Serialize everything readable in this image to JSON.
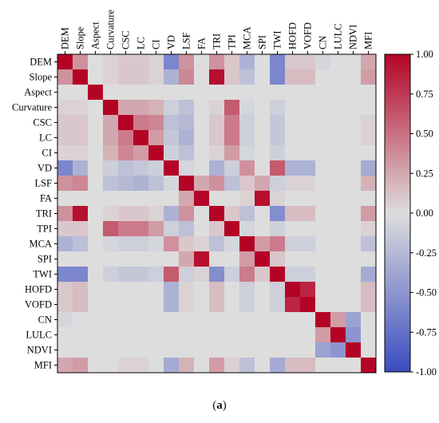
{
  "chart_data": {
    "type": "heatmap",
    "title": "",
    "variables": [
      "DEM",
      "Slope",
      "Aspect",
      "Curvature",
      "CSC",
      "LC",
      "CI",
      "VD",
      "LSF",
      "FA",
      "TRI",
      "TPI",
      "MCA",
      "SPI",
      "TWI",
      "HOFD",
      "VOFD",
      "CN",
      "LULC",
      "NDVI",
      "MFI"
    ],
    "colorbar": {
      "min": -1.0,
      "max": 1.0,
      "ticks": [
        "1.00",
        "0.75",
        "0.50",
        "0.25",
        "0.00",
        "-0.25",
        "-0.50",
        "-0.75",
        "-1.00"
      ],
      "colormap": "coolwarm",
      "colors": {
        "low": "#3b4cc0",
        "mid": "#dddddd",
        "high": "#b40426"
      }
    },
    "matrix": [
      [
        1,
        0.35,
        0,
        0.05,
        0.1,
        0.1,
        0.05,
        -0.6,
        0.35,
        0,
        0.35,
        0.1,
        -0.3,
        0,
        -0.6,
        0.1,
        0.1,
        -0.05,
        0,
        0,
        0.25
      ],
      [
        0.35,
        1,
        0,
        0.05,
        0.1,
        0.1,
        0.05,
        -0.3,
        0.4,
        0,
        0.95,
        0.1,
        -0.2,
        0,
        -0.6,
        0.15,
        0.15,
        0,
        0,
        0,
        0.3
      ],
      [
        0,
        0,
        1,
        0,
        0,
        0,
        0,
        0,
        0,
        0,
        0,
        0,
        0,
        0,
        0,
        0,
        0,
        0,
        0,
        0,
        0
      ],
      [
        0.05,
        0.05,
        0,
        1,
        0.25,
        0.25,
        0.2,
        -0.1,
        -0.2,
        0,
        0.05,
        0.6,
        -0.05,
        0,
        -0.1,
        0,
        0,
        0,
        0,
        0,
        0
      ],
      [
        0.1,
        0.1,
        0,
        0.25,
        1,
        0.45,
        0.4,
        -0.2,
        -0.25,
        0,
        0.1,
        0.45,
        -0.1,
        0,
        -0.15,
        0,
        0,
        0,
        0,
        0,
        0.05
      ],
      [
        0.1,
        0.1,
        0,
        0.25,
        0.45,
        1,
        0.3,
        -0.15,
        -0.3,
        0,
        0.1,
        0.45,
        -0.1,
        0,
        -0.15,
        0,
        0,
        0,
        0,
        0,
        0.05
      ],
      [
        0.05,
        0.05,
        0,
        0.2,
        0.4,
        0.3,
        1,
        -0.1,
        -0.2,
        0,
        0.05,
        0.3,
        -0.05,
        0,
        -0.1,
        0,
        0,
        0,
        0,
        0,
        0
      ],
      [
        -0.6,
        -0.3,
        0,
        -0.1,
        -0.2,
        -0.15,
        -0.1,
        1,
        -0.05,
        0,
        -0.3,
        -0.1,
        0.35,
        0,
        0.6,
        -0.3,
        -0.3,
        0,
        0,
        0,
        -0.35
      ],
      [
        0.35,
        0.4,
        0,
        -0.2,
        -0.25,
        -0.3,
        -0.2,
        -0.05,
        1,
        0.25,
        0.35,
        -0.2,
        0.1,
        0.25,
        -0.1,
        0.05,
        0.05,
        0,
        0,
        0,
        0.2
      ],
      [
        0,
        0,
        0,
        0,
        0,
        0,
        0,
        0,
        0.25,
        1,
        0,
        0,
        0.05,
        0.95,
        0.05,
        0,
        0,
        0,
        0,
        0,
        0
      ],
      [
        0.35,
        0.95,
        0,
        0.05,
        0.1,
        0.1,
        0.05,
        -0.3,
        0.35,
        0,
        1,
        0.1,
        -0.2,
        0,
        -0.55,
        0.15,
        0.15,
        0,
        0,
        0,
        0.3
      ],
      [
        0.1,
        0.1,
        0,
        0.6,
        0.45,
        0.45,
        0.3,
        -0.1,
        -0.2,
        0,
        0.1,
        1,
        -0.05,
        0,
        -0.1,
        0,
        0,
        0,
        0,
        0,
        0.05
      ],
      [
        -0.3,
        -0.2,
        0,
        -0.05,
        -0.1,
        -0.1,
        -0.05,
        0.35,
        0.1,
        0.05,
        -0.2,
        -0.05,
        1,
        0.3,
        0.45,
        -0.1,
        -0.1,
        0,
        0,
        0,
        -0.2
      ],
      [
        0,
        0,
        0,
        0,
        0,
        0,
        0,
        0,
        0.25,
        0.95,
        0,
        0,
        0.3,
        1,
        0.1,
        0,
        0,
        0,
        0,
        0,
        0
      ],
      [
        -0.6,
        -0.6,
        0,
        -0.1,
        -0.15,
        -0.15,
        -0.1,
        0.6,
        -0.1,
        0.05,
        -0.55,
        -0.1,
        0.45,
        0.1,
        1,
        -0.1,
        -0.1,
        0,
        0,
        0,
        -0.35
      ],
      [
        0.1,
        0.15,
        0,
        0,
        0,
        0,
        0,
        -0.3,
        0.05,
        0,
        0.15,
        0,
        -0.1,
        0,
        -0.1,
        1,
        0.85,
        0,
        0,
        0,
        0.15
      ],
      [
        0.1,
        0.15,
        0,
        0,
        0,
        0,
        0,
        -0.3,
        0.05,
        0,
        0.15,
        0,
        -0.1,
        0,
        -0.1,
        0.85,
        1,
        0,
        0,
        0,
        0.15
      ],
      [
        -0.05,
        0,
        0,
        0,
        0,
        0,
        0,
        0,
        0,
        0,
        0,
        0,
        0,
        0,
        0,
        0,
        0,
        1,
        0.3,
        -0.4,
        0
      ],
      [
        0,
        0,
        0,
        0,
        0,
        0,
        0,
        0,
        0,
        0,
        0,
        0,
        0,
        0,
        0,
        0,
        0,
        0.3,
        1,
        -0.5,
        0
      ],
      [
        0,
        0,
        0,
        0,
        0,
        0,
        0,
        0,
        0,
        0,
        0,
        0,
        0,
        0,
        0,
        0,
        0,
        -0.4,
        -0.5,
        1,
        0
      ],
      [
        0.25,
        0.3,
        0,
        0,
        0.05,
        0.05,
        0,
        -0.35,
        0.2,
        0,
        0.3,
        0.05,
        -0.2,
        0,
        -0.35,
        0.15,
        0.15,
        0,
        0,
        0,
        1
      ]
    ]
  },
  "caption": {
    "label": "a"
  }
}
